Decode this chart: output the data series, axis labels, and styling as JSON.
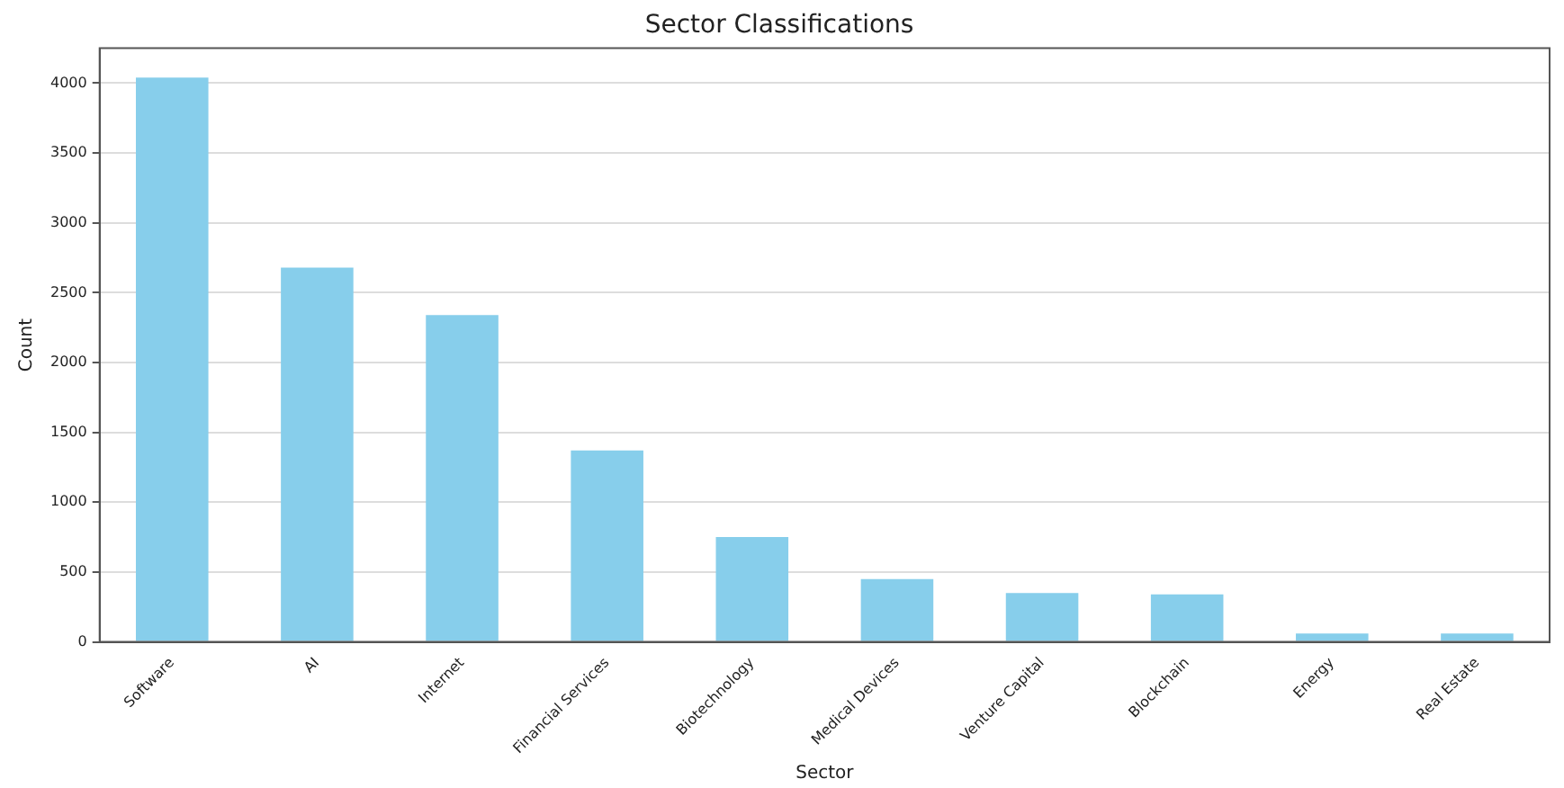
{
  "chart_data": {
    "type": "bar",
    "title": "Sector Classifications",
    "xlabel": "Sector",
    "ylabel": "Count",
    "categories": [
      "Software",
      "AI",
      "Internet",
      "Financial Services",
      "Biotechnology",
      "Medical Devices",
      "Venture Capital",
      "Blockchain",
      "Energy",
      "Real Estate"
    ],
    "values": [
      4040,
      2680,
      2340,
      1370,
      750,
      450,
      350,
      340,
      60,
      60
    ],
    "color": "#87ceeb",
    "ylim": [
      0,
      4250
    ],
    "yticks": [
      0,
      500,
      1000,
      1500,
      2000,
      2500,
      3000,
      3500,
      4000
    ],
    "grid": "y",
    "legend": false
  }
}
